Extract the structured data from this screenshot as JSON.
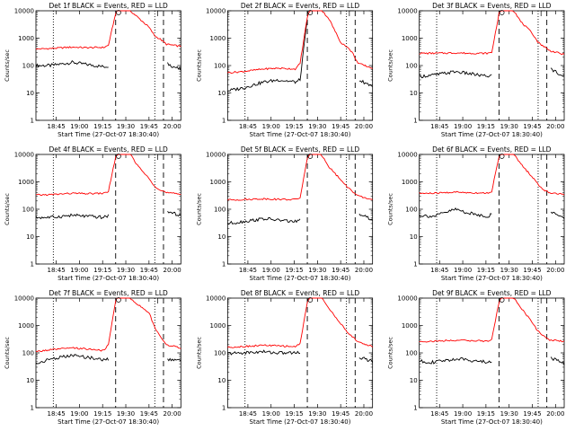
{
  "page": {
    "description": "3x3 grid of log-scale count-rate time series plots"
  },
  "shared": {
    "ylabel": "Counts/sec",
    "xlabel": "Start Time (27-Oct-07 18:30:40)",
    "yticks": [
      "1",
      "10",
      "100",
      "1000",
      "10000"
    ],
    "colors": {
      "black": "#000000",
      "red": "#ff0000"
    }
  },
  "chart_data": [
    {
      "type": "line",
      "title": "Det 1f BLACK = Events, RED = LLD",
      "xticks": [
        "18:45",
        "19:00",
        "19:15",
        "19:30",
        "19:45",
        "20:00"
      ],
      "x": [
        0,
        0.1,
        0.25,
        0.35,
        0.47,
        0.5,
        0.55,
        0.58,
        0.62,
        0.66,
        0.7,
        0.78,
        0.82,
        0.86,
        0.9,
        1.0
      ],
      "series": [
        {
          "name": "BLACK = Events",
          "values": [
            100,
            100,
            130,
            110,
            90,
            95,
            null,
            null,
            null,
            null,
            null,
            null,
            null,
            null,
            120,
            70
          ]
        },
        {
          "name": "RED = LLD",
          "values": [
            400,
            420,
            470,
            450,
            460,
            550,
            8000,
            15000,
            14000,
            9000,
            6000,
            2500,
            1200,
            900,
            600,
            500
          ]
        }
      ],
      "ylim": [
        1,
        10000
      ]
    },
    {
      "type": "line",
      "title": "Det 2f BLACK = Events, RED = LLD",
      "xticks": [
        "18:45",
        "19:00",
        "19:15",
        "19:30",
        "19:45",
        "20:00"
      ],
      "x": [
        0,
        0.1,
        0.25,
        0.35,
        0.47,
        0.5,
        0.55,
        0.58,
        0.62,
        0.66,
        0.7,
        0.78,
        0.82,
        0.86,
        0.9,
        1.0
      ],
      "series": [
        {
          "name": "BLACK = Events",
          "values": [
            12,
            15,
            25,
            30,
            25,
            30,
            5000,
            null,
            null,
            null,
            null,
            null,
            null,
            null,
            30,
            18
          ]
        },
        {
          "name": "RED = LLD",
          "values": [
            55,
            60,
            75,
            80,
            75,
            120,
            6000,
            15000,
            14000,
            9000,
            5000,
            700,
            500,
            300,
            120,
            80
          ]
        }
      ],
      "ylim": [
        1,
        10000
      ]
    },
    {
      "type": "line",
      "title": "Det 3f BLACK = Events, RED = LLD",
      "xticks": [
        "18:45",
        "19:00",
        "19:15",
        "19:30",
        "19:45",
        "20:00"
      ],
      "x": [
        0,
        0.1,
        0.25,
        0.35,
        0.47,
        0.5,
        0.55,
        0.58,
        0.62,
        0.66,
        0.7,
        0.78,
        0.82,
        0.86,
        0.9,
        1.0
      ],
      "series": [
        {
          "name": "BLACK = Events",
          "values": [
            40,
            45,
            60,
            50,
            40,
            45,
            null,
            null,
            null,
            null,
            null,
            null,
            null,
            null,
            80,
            40
          ]
        },
        {
          "name": "RED = LLD",
          "values": [
            280,
            280,
            290,
            280,
            280,
            300,
            8000,
            15000,
            13000,
            9000,
            4000,
            1500,
            700,
            500,
            350,
            250
          ]
        }
      ],
      "ylim": [
        1,
        10000
      ]
    },
    {
      "type": "line",
      "title": "Det 4f BLACK = Events, RED = LLD",
      "xticks": [
        "18:45",
        "19:00",
        "19:15",
        "19:30",
        "19:45",
        "20:00"
      ],
      "x": [
        0,
        0.1,
        0.25,
        0.35,
        0.47,
        0.5,
        0.55,
        0.58,
        0.62,
        0.66,
        0.7,
        0.78,
        0.82,
        0.86,
        0.9,
        1.0
      ],
      "series": [
        {
          "name": "BLACK = Events",
          "values": [
            50,
            50,
            60,
            55,
            50,
            60,
            null,
            null,
            null,
            null,
            null,
            null,
            null,
            null,
            80,
            60
          ]
        },
        {
          "name": "RED = LLD",
          "values": [
            330,
            340,
            380,
            370,
            380,
            450,
            8000,
            15000,
            14000,
            9000,
            4000,
            1300,
            700,
            500,
            400,
            350
          ]
        }
      ],
      "ylim": [
        1,
        10000
      ]
    },
    {
      "type": "line",
      "title": "Det 5f BLACK = Events, RED = LLD",
      "xticks": [
        "18:45",
        "19:00",
        "19:15",
        "19:30",
        "19:45",
        "20:00"
      ],
      "x": [
        0,
        0.1,
        0.25,
        0.35,
        0.47,
        0.5,
        0.55,
        0.58,
        0.62,
        0.66,
        0.7,
        0.78,
        0.82,
        0.86,
        0.9,
        1.0
      ],
      "series": [
        {
          "name": "BLACK = Events",
          "values": [
            30,
            35,
            45,
            40,
            35,
            40,
            null,
            null,
            null,
            null,
            null,
            null,
            null,
            null,
            70,
            40
          ]
        },
        {
          "name": "RED = LLD",
          "values": [
            220,
            225,
            240,
            230,
            225,
            260,
            7000,
            15000,
            14000,
            8000,
            3500,
            1200,
            700,
            450,
            300,
            220
          ]
        }
      ],
      "ylim": [
        1,
        10000
      ]
    },
    {
      "type": "line",
      "title": "Det 6f BLACK = Events, RED = LLD",
      "xticks": [
        "18:45",
        "19:00",
        "19:15",
        "19:30",
        "19:45",
        "20:00"
      ],
      "x": [
        0,
        0.1,
        0.25,
        0.35,
        0.47,
        0.5,
        0.55,
        0.58,
        0.62,
        0.66,
        0.7,
        0.78,
        0.82,
        0.86,
        0.9,
        1.0
      ],
      "series": [
        {
          "name": "BLACK = Events",
          "values": [
            60,
            55,
            100,
            70,
            55,
            65,
            null,
            null,
            null,
            null,
            null,
            null,
            null,
            null,
            80,
            50
          ]
        },
        {
          "name": "RED = LLD",
          "values": [
            380,
            380,
            420,
            400,
            390,
            450,
            8000,
            15000,
            14000,
            9000,
            4500,
            1500,
            800,
            500,
            400,
            350
          ]
        }
      ],
      "ylim": [
        1,
        10000
      ]
    },
    {
      "type": "line",
      "title": "Det 7f BLACK = Events, RED = LLD",
      "xticks": [
        "18:45",
        "19:00",
        "19:15",
        "19:30",
        "19:45",
        "20:00"
      ],
      "x": [
        0,
        0.1,
        0.25,
        0.35,
        0.47,
        0.5,
        0.55,
        0.58,
        0.62,
        0.66,
        0.7,
        0.78,
        0.82,
        0.86,
        0.9,
        1.0
      ],
      "series": [
        {
          "name": "BLACK = Events",
          "values": [
            40,
            60,
            80,
            70,
            55,
            60,
            null,
            null,
            null,
            null,
            null,
            null,
            null,
            null,
            60,
            50
          ]
        },
        {
          "name": "RED = LLD",
          "values": [
            110,
            130,
            150,
            140,
            120,
            200,
            8000,
            15000,
            14000,
            9000,
            6000,
            3000,
            800,
            400,
            200,
            150
          ]
        }
      ],
      "ylim": [
        1,
        10000
      ]
    },
    {
      "type": "line",
      "title": "Det 8f BLACK = Events, RED = LLD",
      "xticks": [
        "18:45",
        "19:00",
        "19:15",
        "19:30",
        "19:45",
        "20:00"
      ],
      "x": [
        0,
        0.1,
        0.25,
        0.35,
        0.47,
        0.5,
        0.55,
        0.58,
        0.62,
        0.66,
        0.7,
        0.78,
        0.82,
        0.86,
        0.9,
        1.0
      ],
      "series": [
        {
          "name": "BLACK = Events",
          "values": [
            95,
            100,
            110,
            100,
            100,
            110,
            null,
            null,
            null,
            null,
            null,
            null,
            null,
            null,
            70,
            50
          ]
        },
        {
          "name": "RED = LLD",
          "values": [
            160,
            170,
            190,
            180,
            170,
            220,
            7000,
            15000,
            14000,
            9000,
            4000,
            1200,
            600,
            400,
            250,
            170
          ]
        }
      ],
      "ylim": [
        1,
        10000
      ]
    },
    {
      "type": "line",
      "title": "Det 9f BLACK = Events, RED = LLD",
      "xticks": [
        "18:45",
        "19:00",
        "19:15",
        "19:30",
        "19:45",
        "20:00"
      ],
      "x": [
        0,
        0.1,
        0.25,
        0.35,
        0.47,
        0.5,
        0.55,
        0.58,
        0.62,
        0.66,
        0.7,
        0.78,
        0.82,
        0.86,
        0.9,
        1.0
      ],
      "series": [
        {
          "name": "BLACK = Events",
          "values": [
            50,
            45,
            60,
            55,
            45,
            50,
            null,
            null,
            null,
            null,
            null,
            null,
            null,
            null,
            70,
            40
          ]
        },
        {
          "name": "RED = LLD",
          "values": [
            260,
            265,
            290,
            280,
            270,
            300,
            7000,
            15000,
            14000,
            9000,
            4500,
            1300,
            600,
            400,
            300,
            260
          ]
        }
      ],
      "ylim": [
        1,
        10000
      ]
    }
  ]
}
